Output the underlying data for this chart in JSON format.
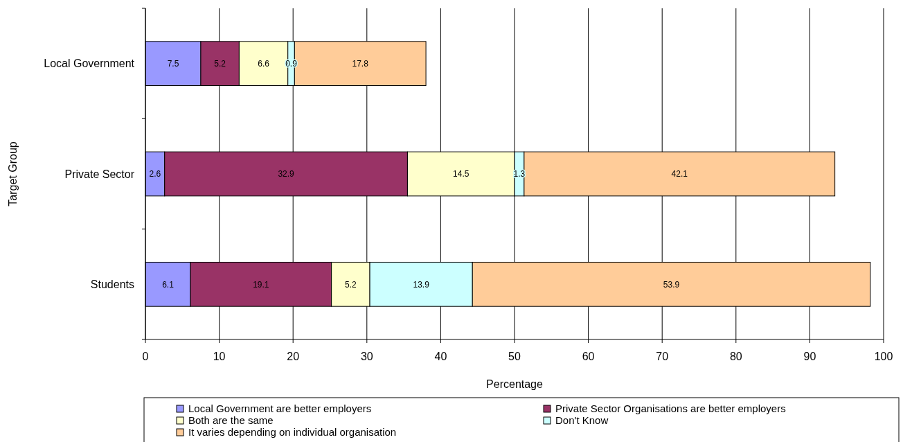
{
  "chart_data": {
    "type": "bar",
    "orientation": "horizontal",
    "stacked": true,
    "categories": [
      "Local Government",
      "Private Sector",
      "Students"
    ],
    "series": [
      {
        "name": "Local Government are better employers",
        "color": "#9999ff",
        "values": [
          7.5,
          2.6,
          6.1
        ]
      },
      {
        "name": "Private Sector Organisations are better employers",
        "color": "#993366",
        "values": [
          5.2,
          32.9,
          19.1
        ]
      },
      {
        "name": "Both are the same",
        "color": "#ffffcc",
        "values": [
          6.6,
          14.5,
          5.2
        ]
      },
      {
        "name": "Don't Know",
        "color": "#ccffff",
        "values": [
          0.9,
          1.3,
          13.9
        ]
      },
      {
        "name": "It varies depending on individual organisation",
        "color": "#ffcc99",
        "values": [
          17.8,
          42.1,
          53.9
        ]
      }
    ],
    "xlim": [
      0,
      100
    ],
    "xticks": [
      0,
      10,
      20,
      30,
      40,
      50,
      60,
      70,
      80,
      90,
      100
    ],
    "xlabel": "Percentage",
    "ylabel": "Target Group",
    "grid": "x",
    "legend": "bottom",
    "data_labels": true
  }
}
